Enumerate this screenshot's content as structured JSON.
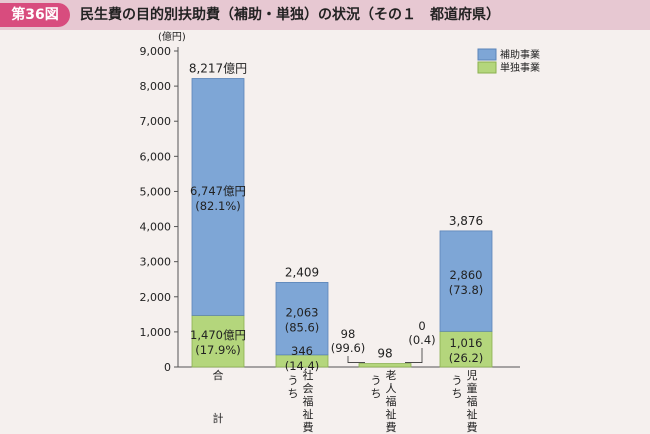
{
  "header": {
    "figure_label": "第36図",
    "title": "民生費の目的別扶助費（補助・単独）の状況（その１　都道府県）"
  },
  "colors": {
    "subsidy": "#7ea6d6",
    "independent": "#b4d67c",
    "header_bg": "#e7c8d2",
    "badge": "#d84c7e"
  },
  "chart_data": {
    "type": "bar",
    "stacked": true,
    "unit_label": "(億円)",
    "ylim": [
      0,
      9000
    ],
    "yticks": [
      "0",
      "1,000",
      "2,000",
      "3,000",
      "4,000",
      "5,000",
      "6,000",
      "7,000",
      "8,000",
      "9,000"
    ],
    "ytick_values": [
      0,
      1000,
      2000,
      3000,
      4000,
      5000,
      6000,
      7000,
      8000,
      9000
    ],
    "legend_position": "top-right",
    "categories": [
      {
        "prefix": "",
        "name": "合計"
      },
      {
        "prefix": "うち",
        "name": "社会福祉費"
      },
      {
        "prefix": "うち",
        "name": "老人福祉費"
      },
      {
        "prefix": "うち",
        "name": "児童福祉費"
      }
    ],
    "series": [
      {
        "name": "単独事業",
        "values": [
          1470,
          346,
          98,
          1016
        ],
        "labels": [
          "1,470億円",
          "346",
          "98",
          "1,016"
        ],
        "shares": [
          "(17.9%)",
          "(14.4)",
          "(99.6)",
          "(26.2)"
        ]
      },
      {
        "name": "補助事業",
        "values": [
          6747,
          2063,
          0,
          2860
        ],
        "labels": [
          "6,747億円",
          "2,063",
          "0",
          "2,860"
        ],
        "shares": [
          "(82.1%)",
          "(85.6)",
          "(0.4)",
          "(73.8)"
        ]
      }
    ],
    "totals": [
      8217,
      2409,
      98,
      3876
    ],
    "total_labels": [
      "8,217億円",
      "2,409",
      "98",
      "3,876"
    ]
  }
}
